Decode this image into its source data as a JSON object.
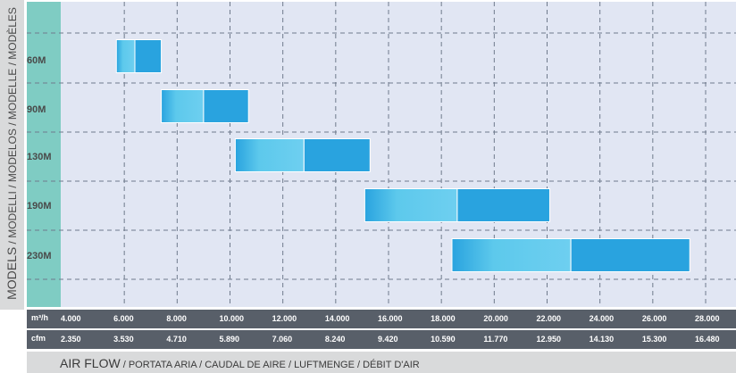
{
  "chart_data": {
    "type": "bar",
    "orientation": "horizontal-range",
    "y_title_main": "MODELS",
    "y_title_rest": " / MODELLI / MODELOS / MODELLE / MODÈLES",
    "x_title_main": "AIR FLOW",
    "x_title_rest": " / PORTATA ARIA / CAUDAL DE AIRE / LUFTMENGE / DÉBIT D'AIR",
    "categories": [
      "60M",
      "90M",
      "130M",
      "190M",
      "230M"
    ],
    "primary_axis": {
      "unit": "m³/h",
      "ticks": [
        "4.000",
        "6.000",
        "8.000",
        "10.000",
        "12.000",
        "14.000",
        "16.000",
        "18.000",
        "20.000",
        "22.000",
        "24.000",
        "26.000",
        "28.000"
      ],
      "range": [
        4000,
        28000
      ]
    },
    "secondary_axis": {
      "unit": "cfm",
      "ticks": [
        "2.350",
        "3.530",
        "4.710",
        "5.890",
        "7.060",
        "8.240",
        "9.420",
        "10.590",
        "11.770",
        "12.950",
        "14.130",
        "15.300",
        "16.480"
      ]
    },
    "ranges": [
      {
        "model": "60M",
        "min": 5700,
        "mid": 6400,
        "max": 7400
      },
      {
        "model": "90M",
        "min": 7400,
        "mid": 9000,
        "max": 10700
      },
      {
        "model": "130M",
        "min": 10200,
        "mid": 12800,
        "max": 15300
      },
      {
        "model": "190M",
        "min": 15100,
        "mid": 18600,
        "max": 22100
      },
      {
        "model": "230M",
        "min": 18400,
        "mid": 22900,
        "max": 27400
      }
    ],
    "grid": true,
    "colors": {
      "plot_bg": "#e1e6f3",
      "left_strip": "#7fccc3",
      "bar_light": "#5dc9ec",
      "bar_dark": "#29a3df",
      "axis_row": "#585f69",
      "band": "#d9dadb"
    }
  }
}
